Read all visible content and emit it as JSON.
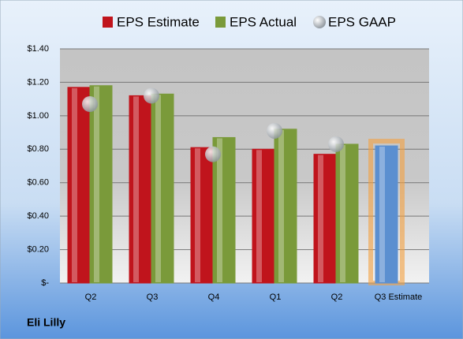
{
  "chart_data": {
    "type": "bar",
    "categories": [
      "Q2",
      "Q3",
      "Q4",
      "Q1",
      "Q2",
      "Q3 Estimate"
    ],
    "series": [
      {
        "name": "EPS Estimate",
        "color": "#c0141c",
        "values": [
          1.17,
          1.12,
          0.81,
          0.8,
          0.77,
          0.82
        ],
        "colors": [
          "#c0141c",
          "#c0141c",
          "#c0141c",
          "#c0141c",
          "#c0141c",
          "#5b8fd0"
        ]
      },
      {
        "name": "EPS Actual",
        "color": "#7a9a3a",
        "values": [
          1.18,
          1.13,
          0.87,
          0.92,
          0.83,
          null
        ]
      },
      {
        "name": "EPS GAAP",
        "color": "#a8b0b8",
        "marker": "bubble",
        "values": [
          1.07,
          1.12,
          0.77,
          0.91,
          0.83,
          null
        ]
      }
    ],
    "ylim": [
      0,
      1.4
    ],
    "yticks": [
      {
        "value": 0,
        "label": "$-"
      },
      {
        "value": 0.2,
        "label": "$0.20"
      },
      {
        "value": 0.4,
        "label": "$0.40"
      },
      {
        "value": 0.6,
        "label": "$0.60"
      },
      {
        "value": 0.8,
        "label": "$0.80"
      },
      {
        "value": 1.0,
        "label": "$1.00"
      },
      {
        "value": 1.2,
        "label": "$1.20"
      },
      {
        "value": 1.4,
        "label": "$1.40"
      }
    ],
    "grid": true,
    "footer": "Eli Lilly"
  }
}
